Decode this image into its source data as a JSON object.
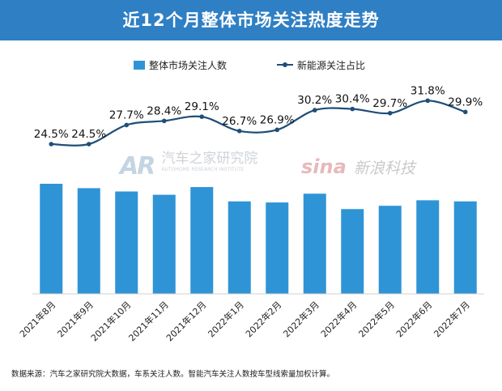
{
  "header": {
    "title": "近12个月整体市场关注热度走势"
  },
  "watermarks": {
    "autohome_logo": "AR",
    "autohome_name": "汽车之家研究院",
    "autohome_sub": "AUTOHOME RESEARCH INSTITUTE",
    "sina_logo": "sina",
    "sina_name": "新浪科技"
  },
  "footer": {
    "source": "数据来源：汽车之家研究院大数据，车系关注人数。智能汽车关注人数按车型线索量加权计算。"
  },
  "colors": {
    "bar": "#2f94d6",
    "line": "#1f4e79",
    "header": "#2f7fc4"
  },
  "chart_data": {
    "type": "bar",
    "title": "近12个月整体市场关注热度走势",
    "categories": [
      "2021年8月",
      "2021年9月",
      "2021年10月",
      "2021年11月",
      "2021年12月",
      "2022年1月",
      "2022年2月",
      "2022年3月",
      "2022年4月",
      "2022年5月",
      "2022年6月",
      "2022年7月"
    ],
    "legend_position": "top-center",
    "series": [
      {
        "name": "整体市场关注人数",
        "type": "bar",
        "values": [
          100,
          96,
          93,
          90,
          97,
          84,
          83,
          91,
          77,
          80,
          85,
          84
        ]
      },
      {
        "name": "新能源关注占比",
        "type": "line",
        "values": [
          24.5,
          24.5,
          27.7,
          28.4,
          29.1,
          26.7,
          26.9,
          30.2,
          30.4,
          29.7,
          31.8,
          29.9
        ],
        "value_labels": [
          "24.5%",
          "24.5%",
          "27.7%",
          "28.4%",
          "29.1%",
          "26.7%",
          "26.9%",
          "30.2%",
          "30.4%",
          "29.7%",
          "31.8%",
          "29.9%"
        ]
      }
    ],
    "grid": false
  }
}
